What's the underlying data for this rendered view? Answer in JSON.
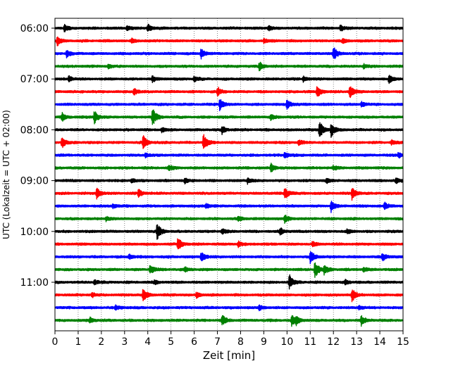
{
  "chart_data": {
    "type": "line",
    "subtype": "helicorder",
    "title": "",
    "xlabel": "Zeit  [min]",
    "ylabel": "UTC (Lokalzeit = UTC + 02:00)",
    "xlim": [
      0,
      15
    ],
    "x_ticks": [
      0,
      1,
      2,
      3,
      4,
      5,
      6,
      7,
      8,
      9,
      10,
      11,
      12,
      13,
      14,
      15
    ],
    "y_tick_labels": [
      "06:00",
      "07:00",
      "08:00",
      "09:00",
      "10:00",
      "11:00"
    ],
    "trace_minutes": 15,
    "vertical_grid": "dotted",
    "trace_colors": [
      "#000000",
      "#ff0000",
      "#0000ff",
      "#008000"
    ],
    "traces": [
      {
        "start": "06:00",
        "color": "#000000",
        "events": [
          {
            "t": 0.4,
            "a": 0.5
          },
          {
            "t": 3.1,
            "a": 0.35
          },
          {
            "t": 4.0,
            "a": 0.55
          },
          {
            "t": 9.2,
            "a": 0.35
          },
          {
            "t": 12.3,
            "a": 0.4
          }
        ]
      },
      {
        "start": "06:15",
        "color": "#ff0000",
        "events": [
          {
            "t": 0.1,
            "a": 0.7
          },
          {
            "t": 3.3,
            "a": 0.3
          },
          {
            "t": 9.0,
            "a": 0.3
          },
          {
            "t": 12.4,
            "a": 0.3
          }
        ]
      },
      {
        "start": "06:30",
        "color": "#0000ff",
        "events": [
          {
            "t": 0.5,
            "a": 0.5
          },
          {
            "t": 6.3,
            "a": 0.75
          },
          {
            "t": 12.0,
            "a": 0.95
          }
        ]
      },
      {
        "start": "06:45",
        "color": "#008000",
        "events": [
          {
            "t": 2.3,
            "a": 0.3
          },
          {
            "t": 8.8,
            "a": 0.6
          },
          {
            "t": 13.3,
            "a": 0.3
          }
        ]
      },
      {
        "start": "07:00",
        "color": "#000000",
        "events": [
          {
            "t": 0.6,
            "a": 0.4
          },
          {
            "t": 4.2,
            "a": 0.4
          },
          {
            "t": 6.0,
            "a": 0.35
          },
          {
            "t": 10.7,
            "a": 0.4
          },
          {
            "t": 14.4,
            "a": 0.7
          }
        ]
      },
      {
        "start": "07:15",
        "color": "#ff0000",
        "events": [
          {
            "t": 3.4,
            "a": 0.5
          },
          {
            "t": 7.0,
            "a": 0.65
          },
          {
            "t": 11.3,
            "a": 0.9
          },
          {
            "t": 12.7,
            "a": 0.9
          }
        ]
      },
      {
        "start": "07:30",
        "color": "#0000ff",
        "events": [
          {
            "t": 7.1,
            "a": 0.8
          },
          {
            "t": 10.0,
            "a": 0.7
          },
          {
            "t": 13.2,
            "a": 0.35
          }
        ]
      },
      {
        "start": "07:45",
        "color": "#008000",
        "events": [
          {
            "t": 0.3,
            "a": 0.55
          },
          {
            "t": 1.7,
            "a": 0.9
          },
          {
            "t": 4.2,
            "a": 1.3
          },
          {
            "t": 9.3,
            "a": 0.35
          }
        ]
      },
      {
        "start": "08:00",
        "color": "#000000",
        "events": [
          {
            "t": 4.6,
            "a": 0.3
          },
          {
            "t": 7.2,
            "a": 0.55
          },
          {
            "t": 11.4,
            "a": 1.3
          },
          {
            "t": 11.9,
            "a": 0.9
          }
        ]
      },
      {
        "start": "08:15",
        "color": "#ff0000",
        "events": [
          {
            "t": 0.3,
            "a": 0.75
          },
          {
            "t": 3.8,
            "a": 0.95
          },
          {
            "t": 6.4,
            "a": 1.2
          },
          {
            "t": 10.5,
            "a": 0.35
          },
          {
            "t": 14.5,
            "a": 0.3
          }
        ]
      },
      {
        "start": "08:30",
        "color": "#0000ff",
        "events": [
          {
            "t": 3.9,
            "a": 0.3
          },
          {
            "t": 9.9,
            "a": 0.45
          },
          {
            "t": 14.8,
            "a": 0.35
          }
        ]
      },
      {
        "start": "08:45",
        "color": "#008000",
        "events": [
          {
            "t": 4.9,
            "a": 0.35
          },
          {
            "t": 9.3,
            "a": 0.6
          },
          {
            "t": 12.0,
            "a": 0.3
          }
        ]
      },
      {
        "start": "09:00",
        "color": "#000000",
        "events": [
          {
            "t": 3.3,
            "a": 0.3
          },
          {
            "t": 5.6,
            "a": 0.4
          },
          {
            "t": 8.3,
            "a": 0.4
          },
          {
            "t": 11.7,
            "a": 0.35
          },
          {
            "t": 14.7,
            "a": 0.3
          }
        ]
      },
      {
        "start": "09:15",
        "color": "#ff0000",
        "events": [
          {
            "t": 1.8,
            "a": 0.75
          },
          {
            "t": 3.6,
            "a": 0.55
          },
          {
            "t": 9.9,
            "a": 0.85
          },
          {
            "t": 12.8,
            "a": 1.05
          }
        ]
      },
      {
        "start": "09:30",
        "color": "#0000ff",
        "events": [
          {
            "t": 2.5,
            "a": 0.3
          },
          {
            "t": 6.5,
            "a": 0.35
          },
          {
            "t": 11.9,
            "a": 0.85
          },
          {
            "t": 14.2,
            "a": 0.45
          }
        ]
      },
      {
        "start": "09:45",
        "color": "#008000",
        "events": [
          {
            "t": 2.2,
            "a": 0.3
          },
          {
            "t": 7.9,
            "a": 0.3
          },
          {
            "t": 9.9,
            "a": 0.55
          }
        ]
      },
      {
        "start": "10:00",
        "color": "#000000",
        "events": [
          {
            "t": 4.4,
            "a": 1.15
          },
          {
            "t": 7.2,
            "a": 0.35
          },
          {
            "t": 9.7,
            "a": 0.55
          },
          {
            "t": 12.6,
            "a": 0.3
          }
        ]
      },
      {
        "start": "10:15",
        "color": "#ff0000",
        "events": [
          {
            "t": 5.3,
            "a": 1.0
          },
          {
            "t": 7.9,
            "a": 0.35
          },
          {
            "t": 11.1,
            "a": 0.35
          }
        ]
      },
      {
        "start": "10:30",
        "color": "#0000ff",
        "events": [
          {
            "t": 3.2,
            "a": 0.3
          },
          {
            "t": 6.3,
            "a": 0.75
          },
          {
            "t": 11.0,
            "a": 1.0
          },
          {
            "t": 14.1,
            "a": 0.55
          }
        ]
      },
      {
        "start": "10:45",
        "color": "#008000",
        "events": [
          {
            "t": 4.1,
            "a": 0.65
          },
          {
            "t": 5.6,
            "a": 0.3
          },
          {
            "t": 11.2,
            "a": 1.25
          },
          {
            "t": 11.6,
            "a": 0.7
          },
          {
            "t": 13.3,
            "a": 0.3
          }
        ]
      },
      {
        "start": "11:00",
        "color": "#000000",
        "events": [
          {
            "t": 1.7,
            "a": 0.3
          },
          {
            "t": 4.3,
            "a": 0.3
          },
          {
            "t": 10.1,
            "a": 1.0
          },
          {
            "t": 12.5,
            "a": 0.35
          }
        ]
      },
      {
        "start": "11:15",
        "color": "#ff0000",
        "events": [
          {
            "t": 1.6,
            "a": 0.3
          },
          {
            "t": 3.8,
            "a": 1.0
          },
          {
            "t": 6.1,
            "a": 0.4
          },
          {
            "t": 12.8,
            "a": 0.9
          }
        ]
      },
      {
        "start": "11:30",
        "color": "#0000ff",
        "events": [
          {
            "t": 2.6,
            "a": 0.3
          },
          {
            "t": 8.8,
            "a": 0.3
          },
          {
            "t": 13.1,
            "a": 0.3
          }
        ]
      },
      {
        "start": "11:45",
        "color": "#008000",
        "events": [
          {
            "t": 1.5,
            "a": 0.4
          },
          {
            "t": 7.2,
            "a": 0.75
          },
          {
            "t": 10.2,
            "a": 0.8
          },
          {
            "t": 10.4,
            "a": 0.5
          },
          {
            "t": 13.2,
            "a": 0.7
          }
        ]
      }
    ]
  }
}
